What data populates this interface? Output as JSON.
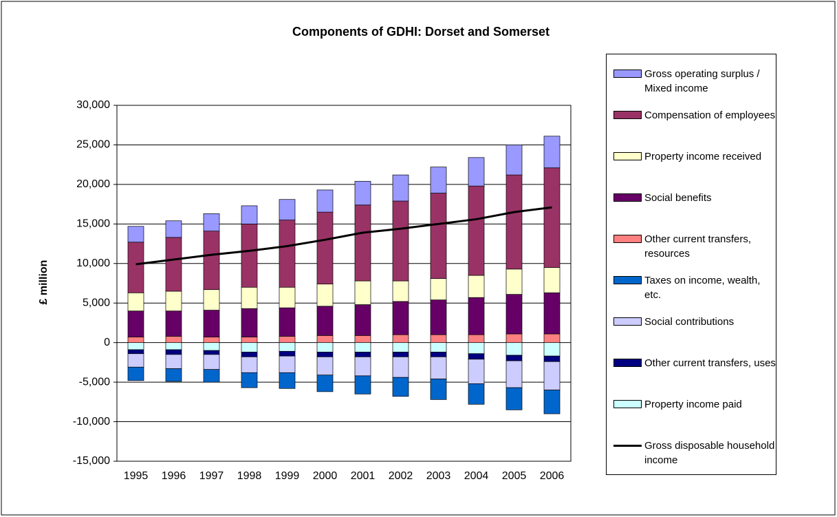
{
  "chart_data": {
    "type": "bar",
    "title": "Components of GDHI: Dorset and Somerset",
    "y_label": "£ million",
    "categories": [
      "1995",
      "1996",
      "1997",
      "1998",
      "1999",
      "2000",
      "2001",
      "2002",
      "2003",
      "2004",
      "2005",
      "2006"
    ],
    "ylim": [
      -15000,
      30000
    ],
    "yticks": [
      {
        "value": 30000,
        "label": "30,000"
      },
      {
        "value": 25000,
        "label": "25,000"
      },
      {
        "value": 20000,
        "label": "20,000"
      },
      {
        "value": 15000,
        "label": "15,000"
      },
      {
        "value": 10000,
        "label": "10,000"
      },
      {
        "value": 5000,
        "label": "5,000"
      },
      0,
      {
        "value": -5000,
        "label": "-5,000"
      },
      {
        "value": -10000,
        "label": "-10,000"
      },
      {
        "value": -15000,
        "label": "-15,000"
      }
    ],
    "grid": true,
    "stacked": true,
    "legend": "right",
    "series": [
      {
        "name": "Gross operating surplus / Mixed income",
        "color": "#9999ff",
        "values": [
          2000,
          2100,
          2200,
          2300,
          2600,
          2800,
          3000,
          3300,
          3300,
          3600,
          3800,
          4000
        ]
      },
      {
        "name": "Compensation of employees",
        "color": "#993366",
        "values": [
          6400,
          6800,
          7400,
          8000,
          8500,
          9100,
          9600,
          10100,
          10800,
          11300,
          11900,
          12600
        ]
      },
      {
        "name": "Property income received",
        "color": "#ffffcc",
        "values": [
          2300,
          2500,
          2600,
          2700,
          2600,
          2800,
          3000,
          2600,
          2700,
          2800,
          3200,
          3200
        ]
      },
      {
        "name": "Social benefits",
        "color": "#660066",
        "values": [
          3300,
          3200,
          3400,
          3600,
          3600,
          3700,
          3900,
          4200,
          4400,
          4700,
          5000,
          5200
        ]
      },
      {
        "name": "Other current transfers, resources",
        "color": "#ff8080",
        "values": [
          700,
          800,
          700,
          700,
          800,
          900,
          900,
          1000,
          1000,
          1000,
          1100,
          1100
        ]
      },
      {
        "name": "Taxes on income, wealth, etc.",
        "color": "#0066cc",
        "values": [
          -1700,
          -1600,
          -1600,
          -1900,
          -2000,
          -2100,
          -2300,
          -2400,
          -2600,
          -2600,
          -2800,
          -3000
        ]
      },
      {
        "name": "Social contributions",
        "color": "#ccccff",
        "values": [
          -1700,
          -1800,
          -1900,
          -2000,
          -2100,
          -2300,
          -2400,
          -2600,
          -2800,
          -3100,
          -3400,
          -3600
        ]
      },
      {
        "name": "Other current transfers, uses",
        "color": "#000080",
        "values": [
          -500,
          -600,
          -500,
          -600,
          -600,
          -600,
          -600,
          -600,
          -600,
          -700,
          -700,
          -700
        ]
      },
      {
        "name": "Property income paid",
        "color": "#ccffff",
        "values": [
          -900,
          -900,
          -1000,
          -1200,
          -1100,
          -1200,
          -1200,
          -1200,
          -1200,
          -1400,
          -1600,
          -1700
        ]
      },
      {
        "name": "Gross disposable household income",
        "color": "#000000",
        "type": "line",
        "values": [
          9900,
          10500,
          11100,
          11600,
          12200,
          13000,
          13900,
          14400,
          15000,
          15600,
          16500,
          17100
        ]
      }
    ]
  }
}
